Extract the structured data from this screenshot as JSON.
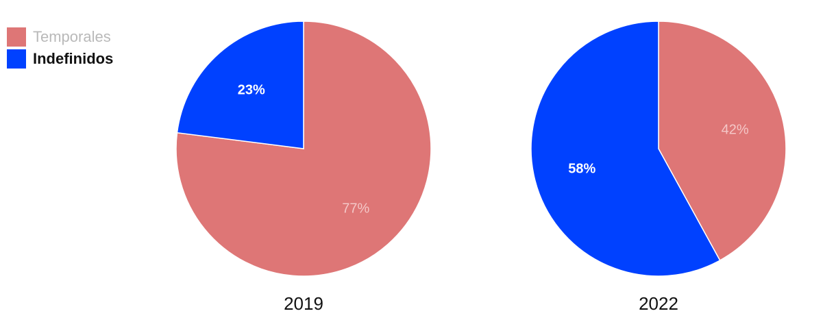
{
  "colors": {
    "temporales": "#de7676",
    "indefinidos": "#0041ff",
    "label_light": "#f4c7c7",
    "label_white": "#ffffff",
    "legend_muted": "#b9b9b9",
    "title": "#111111"
  },
  "legend": {
    "items": [
      {
        "label": "Temporales",
        "style": "muted"
      },
      {
        "label": "Indefinidos",
        "style": "strong"
      }
    ]
  },
  "chart_data": [
    {
      "type": "pie",
      "title": "2019",
      "categories": [
        "Temporales",
        "Indefinidos"
      ],
      "values": [
        77,
        23
      ],
      "labels": [
        "77%",
        "23%"
      ]
    },
    {
      "type": "pie",
      "title": "2022",
      "categories": [
        "Temporales",
        "Indefinidos"
      ],
      "values": [
        42,
        58
      ],
      "labels": [
        "42%",
        "58%"
      ]
    }
  ]
}
